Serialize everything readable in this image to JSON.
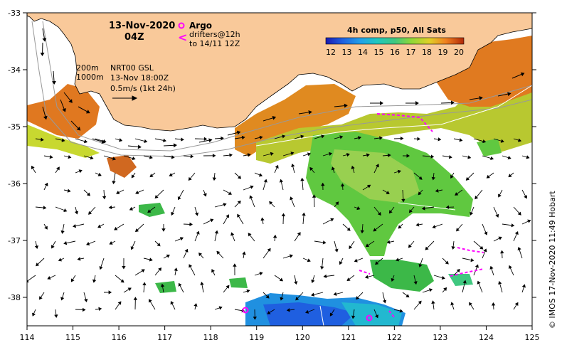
{
  "map": {
    "title_date": "13-Nov-2020",
    "title_time": "04Z",
    "argo_label": "Argo",
    "drifters_label": "drifters@12h",
    "drifters_to": "to 14/11 12Z",
    "isobath_200": "200m",
    "isobath_1000": "1000m",
    "current_source": "NRT00 GSL",
    "current_date": "13-Nov 18:00Z",
    "current_scale": "0.5m/s (1kt 24h)",
    "colorbar_title": "4h comp, p50, All Sats",
    "colorbar_ticks": [
      "12",
      "13",
      "14",
      "15",
      "16",
      "17",
      "18",
      "19",
      "20"
    ],
    "colorbar_colors": [
      "#1a1ab0",
      "#1f5fe0",
      "#22a0ea",
      "#20c8c0",
      "#40c880",
      "#6ed040",
      "#b8d830",
      "#f0c020",
      "#f08020",
      "#c04010"
    ],
    "credit": "© IMOS 17-Nov-2020 11:49 Hobart",
    "x_ticks": [
      "114",
      "115",
      "116",
      "117",
      "118",
      "119",
      "120",
      "121",
      "122",
      "123",
      "124",
      "125"
    ],
    "y_ticks": [
      "-33",
      "-34",
      "-35",
      "-36",
      "-37",
      "-38"
    ],
    "land_color": "#f9c99a",
    "argo_color": "#ff00ff",
    "drifter_color": "#ff00ff"
  }
}
